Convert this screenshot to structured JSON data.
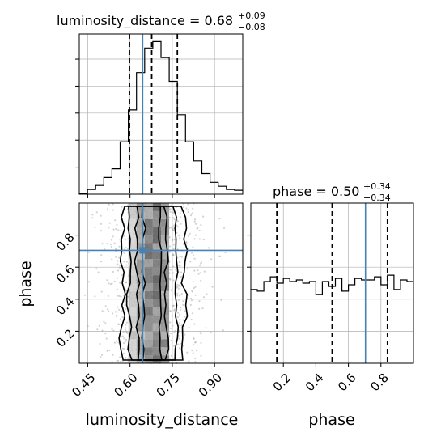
{
  "chart_data": {
    "type": "corner",
    "colors": {
      "truth": "#4682b4",
      "hist": "#000000",
      "quantile": "#000000",
      "grid": "#b0b0b0",
      "scatter": "#9e9e9e"
    },
    "params": [
      "luminosity_distance",
      "phase"
    ],
    "titles": [
      {
        "label": "luminosity_distance = 0.68",
        "sup": "+0.09",
        "sub": "−0.08"
      },
      {
        "label": "phase = 0.50",
        "sup": "+0.34",
        "sub": "−0.34"
      }
    ],
    "xlabels": [
      "luminosity_distance",
      "phase"
    ],
    "ylabel": "phase",
    "ld_range": [
      0.42,
      1.0
    ],
    "phase_range": [
      0.0,
      1.0
    ],
    "ld_ticks": [
      "0.45",
      "0.60",
      "0.75",
      "0.90"
    ],
    "phase_ticks": [
      "0.2",
      "0.4",
      "0.6",
      "0.8"
    ],
    "truth": {
      "luminosity_distance": 0.645,
      "phase": 0.705
    },
    "quantiles": {
      "luminosity_distance": [
        0.598,
        0.677,
        0.768
      ],
      "phase": [
        0.16,
        0.5,
        0.84
      ]
    },
    "hist_ld": {
      "edges": [
        0.42,
        0.449,
        0.478,
        0.507,
        0.536,
        0.565,
        0.594,
        0.623,
        0.652,
        0.681,
        0.71,
        0.739,
        0.768,
        0.797,
        0.826,
        0.855,
        0.884,
        0.913,
        0.942,
        0.971,
        1.0
      ],
      "counts": [
        0.5,
        3.0,
        5.5,
        10.5,
        16.0,
        33.0,
        53.0,
        76.5,
        92.0,
        96.0,
        86.0,
        71.0,
        50.0,
        33.0,
        21.0,
        13.0,
        7.5,
        5.0,
        3.0,
        2.5
      ]
    },
    "hist_phase": {
      "edges": [
        0.0,
        0.04,
        0.08,
        0.12,
        0.16,
        0.2,
        0.24,
        0.28,
        0.32,
        0.36,
        0.4,
        0.44,
        0.48,
        0.52,
        0.56,
        0.6,
        0.64,
        0.68,
        0.72,
        0.76,
        0.8,
        0.84,
        0.88,
        0.92,
        0.96,
        1.0
      ],
      "counts": [
        46.0,
        45.0,
        51.0,
        54.0,
        50.0,
        53.0,
        51.0,
        52.0,
        50.0,
        51.0,
        43.0,
        51.0,
        48.0,
        53.0,
        45.0,
        49.0,
        53.0,
        52.0,
        52.0,
        54.0,
        49.0,
        55.0,
        46.0,
        52.0,
        51.0
      ],
      "ymax": 100
    }
  }
}
